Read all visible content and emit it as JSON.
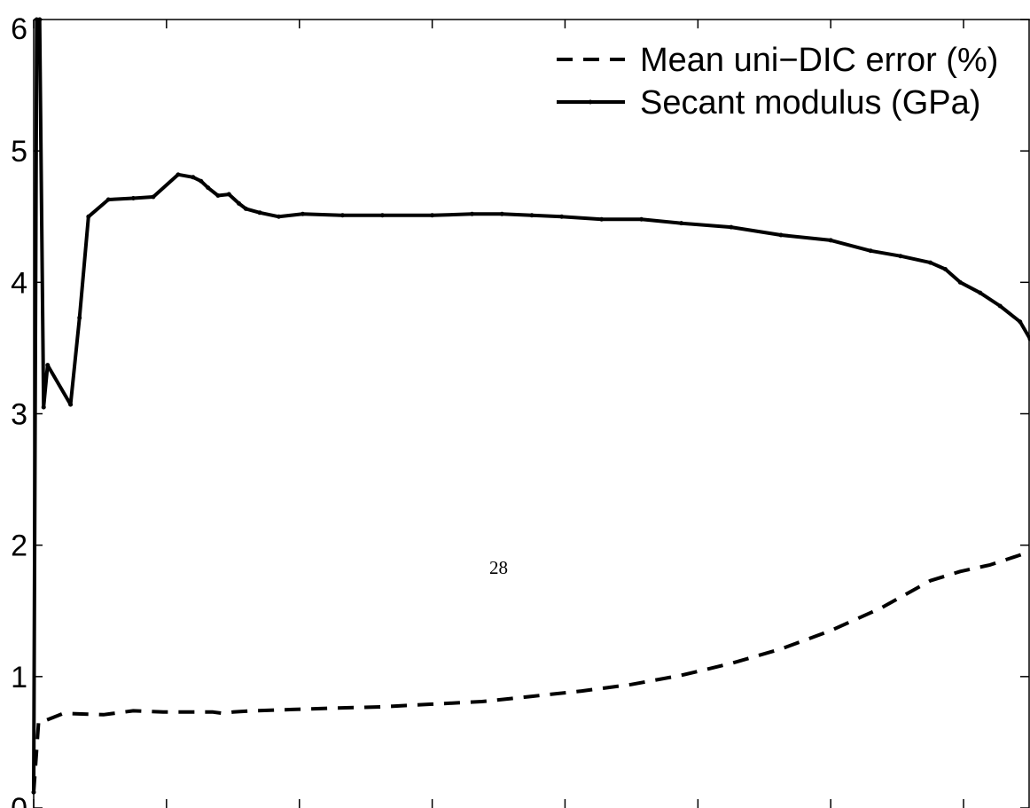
{
  "page_number": "28",
  "chart_data": {
    "type": "line",
    "title": "",
    "xlabel": "",
    "ylabel": "",
    "ylim": [
      0,
      6
    ],
    "yticks": [
      0,
      1,
      2,
      3,
      4,
      5,
      6
    ],
    "ytick_labels": [
      "0",
      "1",
      "2",
      "3",
      "4",
      "5",
      "6"
    ],
    "xlim": [
      0,
      1
    ],
    "xticks": [
      0,
      0.1333,
      0.2667,
      0.4,
      0.5333,
      0.6667,
      0.8,
      0.9333
    ],
    "xtick_labels": [],
    "grid": false,
    "legend": {
      "placement": "top-right"
    },
    "colors": {
      "series": "#000000",
      "axes": "#000000"
    },
    "series": [
      {
        "name": "Mean uni−DIC error (%)",
        "style": "dashed",
        "markers": false,
        "x": [
          0.0,
          0.005,
          0.01,
          0.03,
          0.07,
          0.1,
          0.13,
          0.16,
          0.18,
          0.19,
          0.2,
          0.22,
          0.26,
          0.3,
          0.35,
          0.4,
          0.45,
          0.5,
          0.55,
          0.6,
          0.65,
          0.7,
          0.75,
          0.8,
          0.85,
          0.9,
          0.93,
          0.96,
          0.98,
          1.0
        ],
        "y": [
          0.12,
          0.66,
          0.66,
          0.72,
          0.71,
          0.74,
          0.73,
          0.73,
          0.73,
          0.72,
          0.73,
          0.74,
          0.75,
          0.76,
          0.77,
          0.79,
          0.81,
          0.85,
          0.89,
          0.94,
          1.01,
          1.1,
          1.21,
          1.35,
          1.52,
          1.73,
          1.8,
          1.85,
          1.9,
          1.95
        ]
      },
      {
        "name": "Secant modulus (GPa)",
        "style": "solid",
        "markers": true,
        "x": [
          0.0,
          0.003,
          0.006,
          0.01,
          0.014,
          0.037,
          0.046,
          0.055,
          0.075,
          0.1,
          0.12,
          0.145,
          0.16,
          0.168,
          0.175,
          0.185,
          0.196,
          0.206,
          0.213,
          0.227,
          0.246,
          0.27,
          0.31,
          0.35,
          0.4,
          0.44,
          0.47,
          0.5,
          0.53,
          0.57,
          0.61,
          0.65,
          0.7,
          0.75,
          0.8,
          0.84,
          0.87,
          0.9,
          0.915,
          0.93,
          0.95,
          0.97,
          0.99,
          1.0
        ],
        "y": [
          0.12,
          6.0,
          6.0,
          3.05,
          3.37,
          3.07,
          3.73,
          4.5,
          4.63,
          4.64,
          4.65,
          4.82,
          4.8,
          4.77,
          4.72,
          4.66,
          4.67,
          4.6,
          4.56,
          4.53,
          4.5,
          4.52,
          4.51,
          4.51,
          4.51,
          4.52,
          4.52,
          4.51,
          4.5,
          4.48,
          4.48,
          4.45,
          4.42,
          4.36,
          4.32,
          4.24,
          4.2,
          4.15,
          4.1,
          4.0,
          3.92,
          3.82,
          3.7,
          3.57
        ]
      }
    ]
  }
}
